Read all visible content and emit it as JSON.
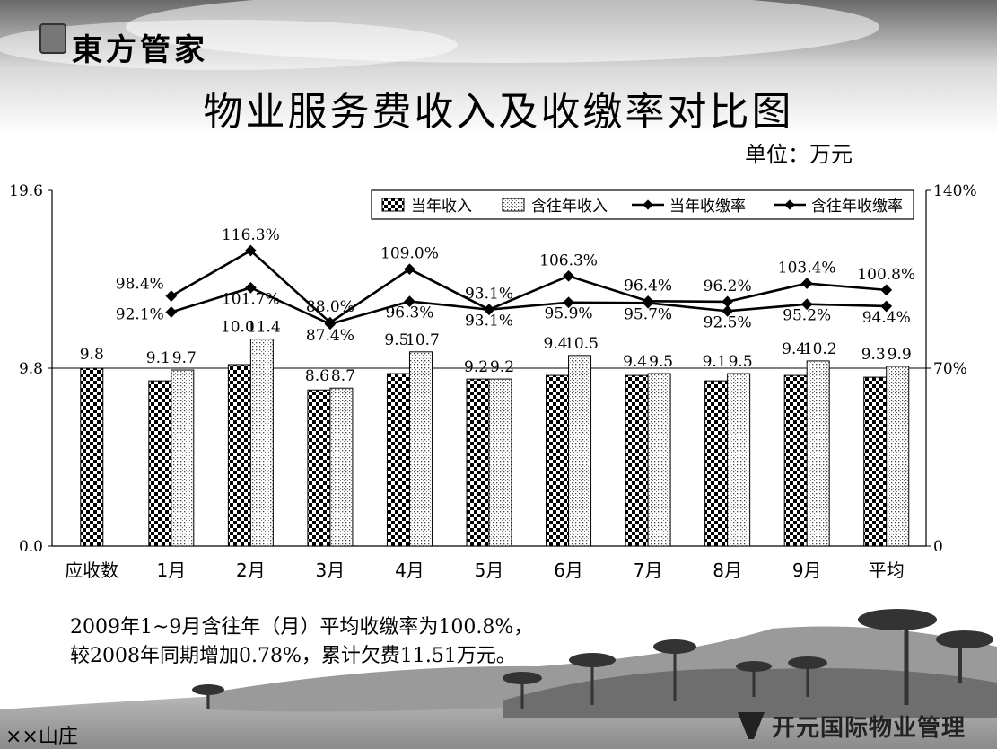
{
  "brand": {
    "logo_text": "東方管家"
  },
  "title": "物业服务费收入及收缴率对比图",
  "unit_label": "单位：万元",
  "note_lines": [
    "2009年1~9月含往年（月）平均收缴率为100.8%，",
    "较2008年同期增加0.78%，累计欠费11.51万元。"
  ],
  "footer_left": "××山庄",
  "footer_right": "开元国际物业管理",
  "colors": {
    "line": "#000000",
    "bar_border": "#000000",
    "background": "#ffffff"
  },
  "chart_data": {
    "type": "bar",
    "categories": [
      "应收数",
      "1月",
      "2月",
      "3月",
      "4月",
      "5月",
      "6月",
      "7月",
      "8月",
      "9月",
      "平均"
    ],
    "y_left_ticks": [
      "19.6",
      "9.8",
      "0.0"
    ],
    "y_right_ticks": [
      "140%",
      "70%",
      "0"
    ],
    "ylim_left": [
      0,
      19.6
    ],
    "ylim_right": [
      0,
      140
    ],
    "legend_position": "top-right",
    "grid": "horizontal line at 9.8",
    "bar_series": [
      {
        "name": "当年收入",
        "pattern": "checkerboard",
        "values": [
          9.8,
          9.1,
          10.0,
          8.6,
          9.5,
          9.2,
          9.4,
          9.4,
          9.1,
          9.4,
          9.3
        ],
        "labels": [
          "9.8",
          "9.1",
          "10.0",
          "8.6",
          "9.5",
          "9.2",
          "9.4",
          "9.4",
          "9.1",
          "9.4",
          "9.3"
        ]
      },
      {
        "name": "含往年收入",
        "pattern": "dotted",
        "values": [
          null,
          9.7,
          11.4,
          8.7,
          10.7,
          9.2,
          10.5,
          9.5,
          9.5,
          10.2,
          9.9
        ],
        "labels": [
          "",
          "9.7",
          "11.4",
          "8.7",
          "10.7",
          "9.2",
          "10.5",
          "9.5",
          "9.5",
          "10.2",
          "9.9"
        ]
      }
    ],
    "line_series": [
      {
        "name": "当年收缴率",
        "values": [
          null,
          92.1,
          101.7,
          87.4,
          96.3,
          93.1,
          95.9,
          95.7,
          92.5,
          95.2,
          94.4
        ],
        "labels": [
          "",
          "92.1%",
          "101.7%",
          "87.4%",
          "96.3%",
          "93.1%",
          "95.9%",
          "95.7%",
          "92.5%",
          "95.2%",
          "94.4%"
        ]
      },
      {
        "name": "含往年收缴率",
        "values": [
          null,
          98.4,
          116.3,
          88.0,
          109.0,
          93.1,
          106.3,
          96.4,
          96.2,
          103.4,
          100.8
        ],
        "labels": [
          "",
          "98.4%",
          "116.3%",
          "88.0%",
          "109.0%",
          "93.1%",
          "106.3%",
          "96.4%",
          "96.2%",
          "103.4%",
          "100.8%"
        ]
      }
    ]
  }
}
